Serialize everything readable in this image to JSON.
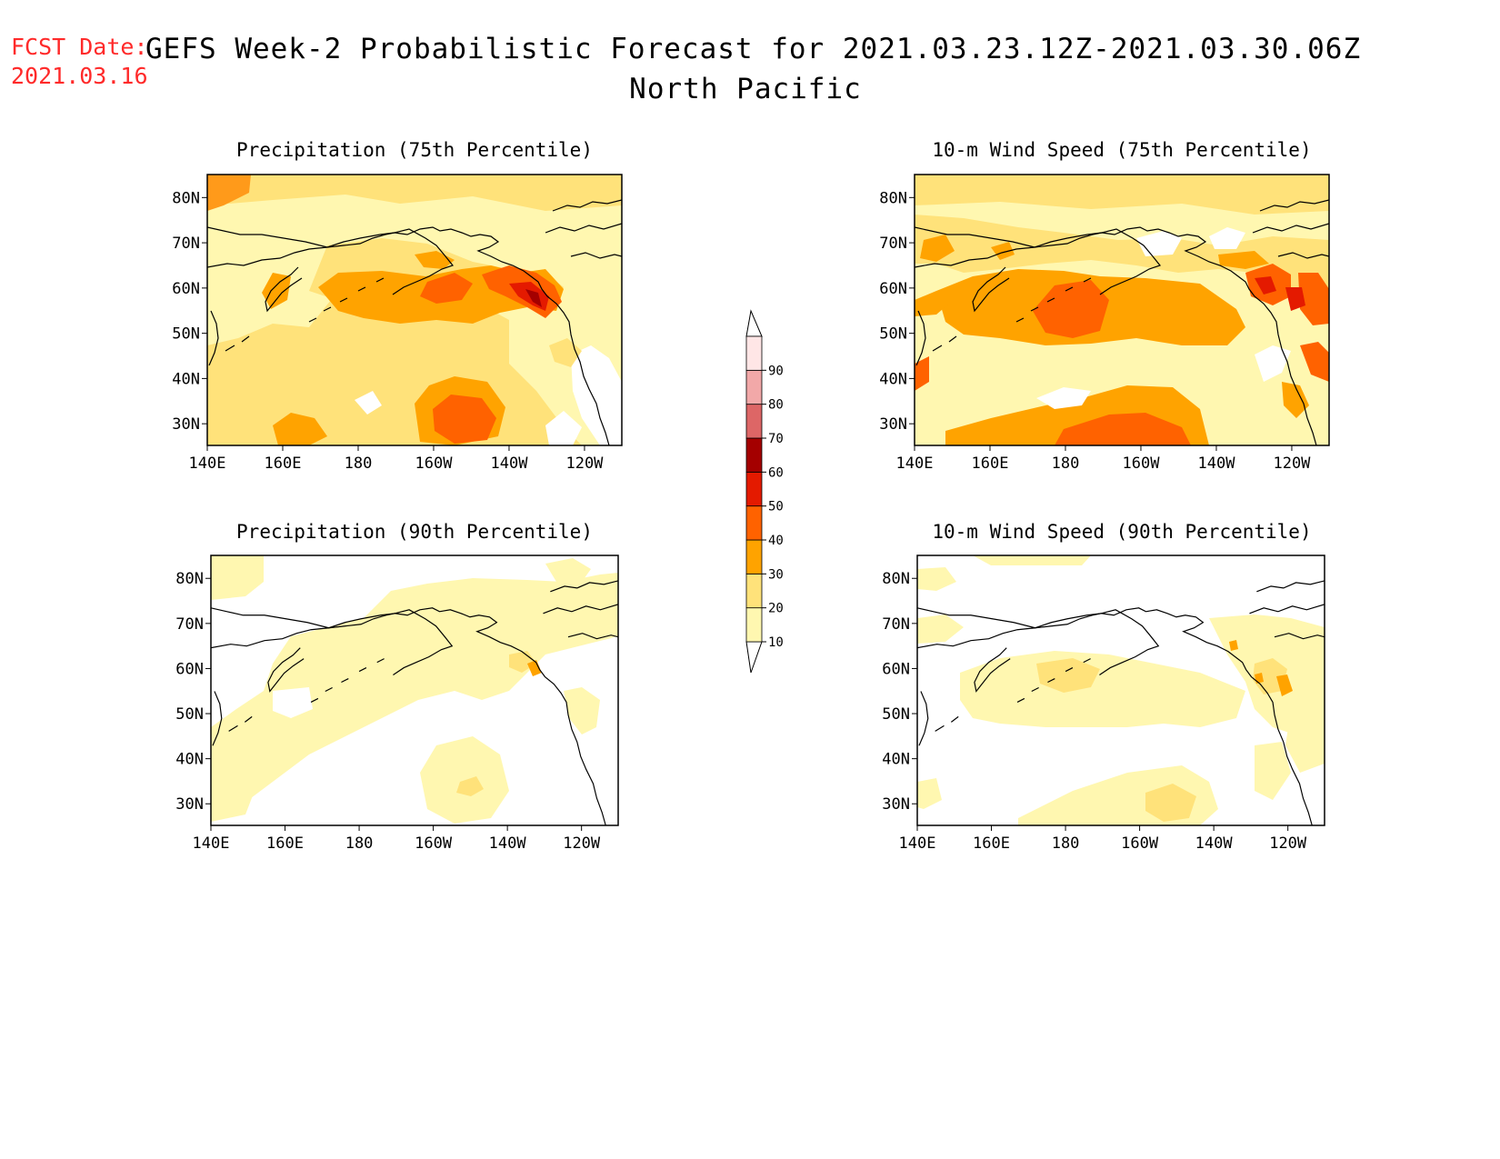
{
  "header": {
    "fcst_label": "FCST Date:",
    "fcst_date": "2021.03.16",
    "title_line1": "GEFS Week-2 Probabilistic Forecast for 2021.03.23.12Z-2021.03.30.06Z",
    "title_line2": "North Pacific"
  },
  "panels": [
    {
      "id": "precip75",
      "title": "Precipitation (75th Percentile)"
    },
    {
      "id": "wind75",
      "title": "10-m Wind Speed (75th Percentile)"
    },
    {
      "id": "precip90",
      "title": "Precipitation (90th Percentile)"
    },
    {
      "id": "wind90",
      "title": "10-m Wind Speed (90th Percentile)"
    }
  ],
  "axes": {
    "lat_ticks": [
      "80N",
      "70N",
      "60N",
      "50N",
      "40N",
      "30N"
    ],
    "lon_ticks": [
      "140E",
      "160E",
      "180",
      "160W",
      "140W",
      "120W"
    ]
  },
  "colorbar": {
    "levels": [
      "10",
      "20",
      "30",
      "40",
      "50",
      "60",
      "70",
      "80",
      "90"
    ],
    "colors": [
      "#fff7b0",
      "#ffe27a",
      "#ffa300",
      "#ff6200",
      "#e41a00",
      "#a40000",
      "#dd6666",
      "#f2a8a8",
      "#ffe6e6"
    ]
  }
}
